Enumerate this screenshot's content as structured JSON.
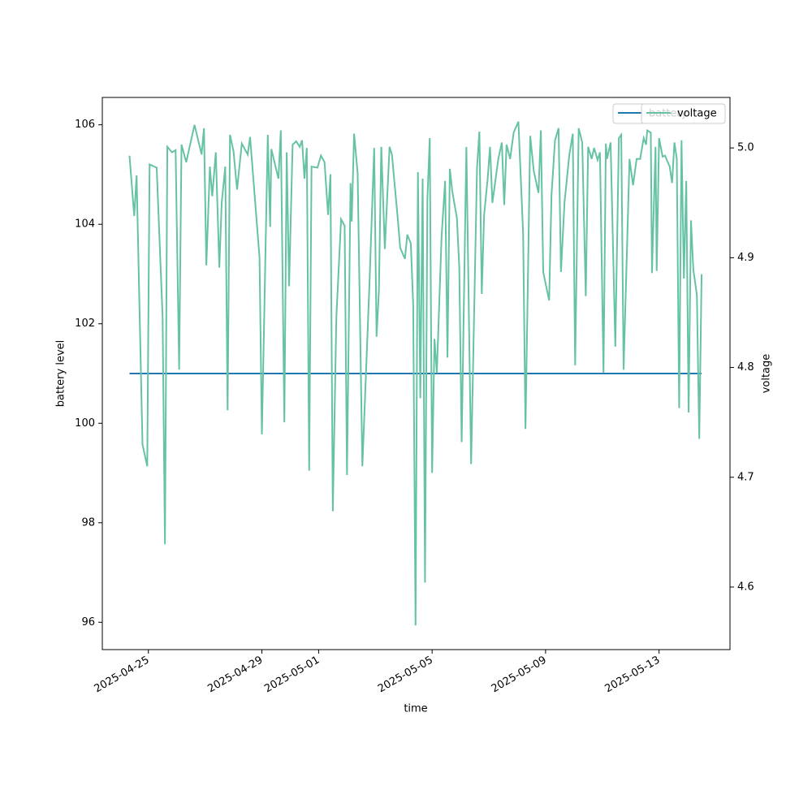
{
  "chart_data": {
    "type": "line",
    "x": [
      "2025-04-24T08:00",
      "2025-04-24T12:00",
      "2025-04-24T14:00",
      "2025-04-24T19:00",
      "2025-04-24T23:00",
      "2025-04-25T01:00",
      "2025-04-25T07:00",
      "2025-04-25T12:00",
      "2025-04-25T14:00",
      "2025-04-25T16:00",
      "2025-04-25T20:00",
      "2025-04-25T23:00",
      "2025-04-26T02:00",
      "2025-04-26T04:00",
      "2025-04-26T08:00",
      "2025-04-26T15:00",
      "2025-04-26T21:00",
      "2025-04-26T23:00",
      "2025-04-27T01:00",
      "2025-04-27T04:00",
      "2025-04-27T06:00",
      "2025-04-27T09:00",
      "2025-04-27T12:00",
      "2025-04-27T14:00",
      "2025-04-27T17:00",
      "2025-04-27T19:00",
      "2025-04-27T21:00",
      "2025-04-28T00:00",
      "2025-04-28T03:00",
      "2025-04-28T07:00",
      "2025-04-28T12:00",
      "2025-04-28T14:00",
      "2025-04-28T22:00",
      "2025-04-29T00:00",
      "2025-04-29T05:00",
      "2025-04-29T07:00",
      "2025-04-29T08:00",
      "2025-04-29T14:00",
      "2025-04-29T16:00",
      "2025-04-29T19:00",
      "2025-04-29T21:00",
      "2025-04-29T23:00",
      "2025-04-30T02:00",
      "2025-04-30T05:00",
      "2025-04-30T08:00",
      "2025-04-30T10:00",
      "2025-04-30T12:00",
      "2025-04-30T14:00",
      "2025-04-30T16:00",
      "2025-04-30T18:00",
      "2025-04-30T23:00",
      "2025-05-01T02:00",
      "2025-05-01T05:00",
      "2025-05-01T08:00",
      "2025-05-01T10:00",
      "2025-05-01T12:00",
      "2025-05-01T15:00",
      "2025-05-01T19:00",
      "2025-05-01T22:00",
      "2025-05-02T00:00",
      "2025-05-02T03:00",
      "2025-05-02T04:00",
      "2025-05-02T06:00",
      "2025-05-02T09:00",
      "2025-05-02T13:00",
      "2025-05-02T19:00",
      "2025-05-02T23:00",
      "2025-05-03T01:00",
      "2025-05-03T03:00",
      "2025-05-03T05:00",
      "2025-05-03T08:00",
      "2025-05-03T12:00",
      "2025-05-03T14:00",
      "2025-05-03T19:00",
      "2025-05-03T21:00",
      "2025-05-04T01:00",
      "2025-05-04T03:00",
      "2025-05-04T06:00",
      "2025-05-04T08:00",
      "2025-05-04T10:00",
      "2025-05-04T12:00",
      "2025-05-04T14:00",
      "2025-05-04T16:00",
      "2025-05-04T18:00",
      "2025-05-04T20:00",
      "2025-05-04T22:00",
      "2025-05-05T00:00",
      "2025-05-05T02:00",
      "2025-05-05T04:00",
      "2025-05-05T08:00",
      "2025-05-05T11:00",
      "2025-05-05T13:00",
      "2025-05-05T15:00",
      "2025-05-05T17:00",
      "2025-05-05T21:00",
      "2025-05-05T23:00",
      "2025-05-06T01:00",
      "2025-05-06T05:00",
      "2025-05-06T09:00",
      "2025-05-06T14:00",
      "2025-05-06T16:00",
      "2025-05-06T18:00",
      "2025-05-06T20:00",
      "2025-05-06T23:00",
      "2025-05-07T01:00",
      "2025-05-07T03:00",
      "2025-05-07T08:00",
      "2025-05-07T11:00",
      "2025-05-07T13:00",
      "2025-05-07T15:00",
      "2025-05-07T18:00",
      "2025-05-07T21:00",
      "2025-05-08T01:00",
      "2025-05-08T05:00",
      "2025-05-08T07:00",
      "2025-05-08T11:00",
      "2025-05-08T14:00",
      "2025-05-08T18:00",
      "2025-05-08T20:00",
      "2025-05-08T22:00",
      "2025-05-09T03:00",
      "2025-05-09T05:00",
      "2025-05-09T08:00",
      "2025-05-09T11:00",
      "2025-05-09T13:00",
      "2025-05-09T16:00",
      "2025-05-09T20:00",
      "2025-05-09T23:00",
      "2025-05-10T01:00",
      "2025-05-10T04:00",
      "2025-05-10T07:00",
      "2025-05-10T10:00",
      "2025-05-10T12:00",
      "2025-05-10T15:00",
      "2025-05-10T17:00",
      "2025-05-10T20:00",
      "2025-05-10T22:00",
      "2025-05-11T01:00",
      "2025-05-11T03:00",
      "2025-05-11T04:00",
      "2025-05-11T07:00",
      "2025-05-11T11:00",
      "2025-05-11T14:00",
      "2025-05-11T16:00",
      "2025-05-11T18:00",
      "2025-05-11T21:00",
      "2025-05-11T23:00",
      "2025-05-12T02:00",
      "2025-05-12T05:00",
      "2025-05-12T08:00",
      "2025-05-12T11:00",
      "2025-05-12T13:00",
      "2025-05-12T14:00",
      "2025-05-12T17:00",
      "2025-05-12T18:00",
      "2025-05-12T21:00",
      "2025-05-12T22:00",
      "2025-05-13T00:00",
      "2025-05-13T03:00",
      "2025-05-13T05:00",
      "2025-05-13T09:00",
      "2025-05-13T11:00",
      "2025-05-13T13:00",
      "2025-05-13T15:00",
      "2025-05-13T17:00",
      "2025-05-13T19:00",
      "2025-05-13T21:00",
      "2025-05-13T23:00",
      "2025-05-14T01:00",
      "2025-05-14T03:00",
      "2025-05-14T05:00",
      "2025-05-14T08:00",
      "2025-05-14T10:00",
      "2025-05-14T12:00"
    ],
    "series": [
      {
        "name": "battery",
        "color": "#1f77b4",
        "axis": "y",
        "values": [
          101,
          101,
          101,
          101,
          101,
          101,
          101,
          101,
          101,
          101,
          101,
          101,
          101,
          101,
          101,
          101,
          101,
          101,
          101,
          101,
          101,
          101,
          101,
          101,
          101,
          101,
          101,
          101,
          101,
          101,
          101,
          101,
          101,
          101,
          101,
          101,
          101,
          101,
          101,
          101,
          101,
          101,
          101,
          101,
          101,
          101,
          101,
          101,
          101,
          101,
          101,
          101,
          101,
          101,
          101,
          101,
          101,
          101,
          101,
          101,
          101,
          101,
          101,
          101,
          101,
          101,
          101,
          101,
          101,
          101,
          101,
          101,
          101,
          101,
          101,
          101,
          101,
          101,
          101,
          101,
          101,
          101,
          101,
          101,
          101,
          101,
          101,
          101,
          101,
          101,
          101,
          101,
          101,
          101,
          101,
          101,
          101,
          101,
          101,
          101,
          101,
          101,
          101,
          101,
          101,
          101,
          101,
          101,
          101,
          101,
          101,
          101,
          101,
          101,
          101,
          101,
          101,
          101,
          101,
          101,
          101,
          101,
          101,
          101,
          101,
          101,
          101,
          101,
          101,
          101,
          101,
          101,
          101,
          101,
          101,
          101,
          101,
          101,
          101,
          101,
          101,
          101,
          101,
          101,
          101,
          101,
          101,
          101,
          101,
          101,
          101,
          101,
          101,
          101,
          101,
          101,
          101,
          101,
          101,
          101,
          101,
          101,
          101,
          101,
          101,
          101,
          101,
          101,
          101,
          101,
          101,
          101,
          101,
          101
        ]
      },
      {
        "name": "voltage",
        "color": "#66c2a5",
        "axis": "y2",
        "values": [
          4.993,
          4.938,
          4.975,
          4.73,
          4.71,
          4.985,
          4.982,
          4.846,
          4.639,
          5.001,
          4.996,
          4.998,
          4.798,
          5.003,
          4.987,
          5.021,
          4.994,
          5.018,
          4.893,
          4.983,
          4.956,
          4.996,
          4.891,
          4.95,
          4.983,
          4.761,
          5.012,
          4.997,
          4.962,
          5.004,
          4.994,
          5.01,
          4.9,
          4.739,
          5.012,
          4.928,
          4.999,
          4.972,
          5.016,
          4.75,
          4.996,
          4.874,
          5.003,
          5.006,
          5.001,
          5.007,
          4.972,
          5.0,
          4.706,
          4.983,
          4.982,
          4.993,
          4.987,
          4.939,
          4.976,
          4.669,
          4.846,
          4.935,
          4.929,
          4.702,
          4.968,
          4.933,
          5.013,
          4.977,
          4.71,
          4.876,
          5.0,
          4.828,
          4.87,
          5.001,
          4.908,
          5.001,
          4.994,
          4.935,
          4.909,
          4.899,
          4.921,
          4.913,
          4.857,
          4.565,
          4.978,
          4.772,
          4.972,
          4.604,
          4.953,
          5.009,
          4.704,
          4.826,
          4.795,
          4.919,
          4.97,
          4.809,
          4.981,
          4.961,
          4.936,
          4.891,
          4.732,
          5.001,
          4.712,
          4.982,
          5.015,
          4.867,
          4.939,
          4.972,
          5.001,
          4.95,
          4.99,
          5.005,
          4.948,
          5.003,
          4.99,
          5.014,
          5.024,
          4.922,
          4.744,
          5.011,
          4.979,
          4.959,
          5.016,
          4.887,
          4.861,
          4.957,
          5.007,
          5.018,
          4.887,
          4.95,
          4.993,
          5.013,
          4.802,
          5.018,
          5.005,
          4.865,
          5.001,
          4.99,
          5.0,
          4.989,
          4.996,
          4.795,
          5.004,
          4.99,
          5.005,
          4.819,
          5.009,
          5.012,
          4.798,
          4.913,
          4.99,
          4.966,
          4.99,
          4.99,
          5.009,
          5.003,
          5.016,
          5.014,
          4.886,
          5.001,
          4.888,
          5.009,
          4.992,
          4.993,
          4.983,
          4.968,
          5.005,
          4.99,
          4.763,
          5.007,
          4.881,
          4.97,
          4.759,
          4.934,
          4.889,
          4.866,
          4.735,
          4.885
        ]
      }
    ],
    "xlabel": "time",
    "ylabel": "battery level",
    "y2label": "voltage",
    "xlim": [
      "2025-04-23T09:00",
      "2025-05-15T12:00"
    ],
    "xticks": [
      "2025-04-25",
      "2025-04-29",
      "2025-05-01",
      "2025-05-05",
      "2025-05-09",
      "2025-05-13"
    ],
    "ylim": [
      95.45,
      106.55
    ],
    "yticks": [
      96,
      98,
      100,
      102,
      104,
      106
    ],
    "y2lim": [
      4.543,
      5.046
    ],
    "y2ticks": [
      4.6,
      4.7,
      4.8,
      4.9,
      {
        "value": 5,
        "label": "5.0"
      }
    ],
    "legend": "upper right"
  }
}
